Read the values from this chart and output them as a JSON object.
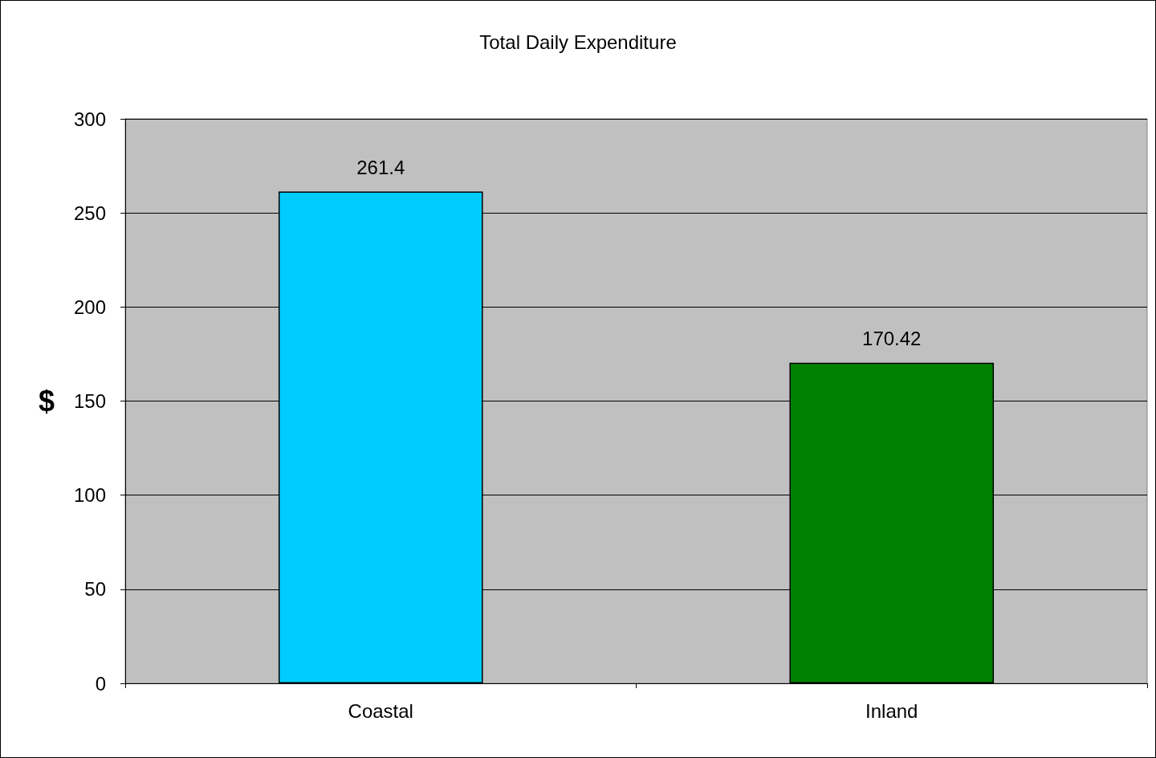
{
  "chart_data": {
    "type": "bar",
    "title": "Total Daily Expenditure",
    "ylabel": "$",
    "categories": [
      "Coastal",
      "Inland"
    ],
    "values": [
      261.4,
      170.42
    ],
    "colors": [
      "#00ccff",
      "#008000"
    ],
    "ylim": [
      0,
      300
    ],
    "yticks": [
      0,
      50,
      100,
      150,
      200,
      250,
      300
    ],
    "grid": "y",
    "data_labels": true
  }
}
